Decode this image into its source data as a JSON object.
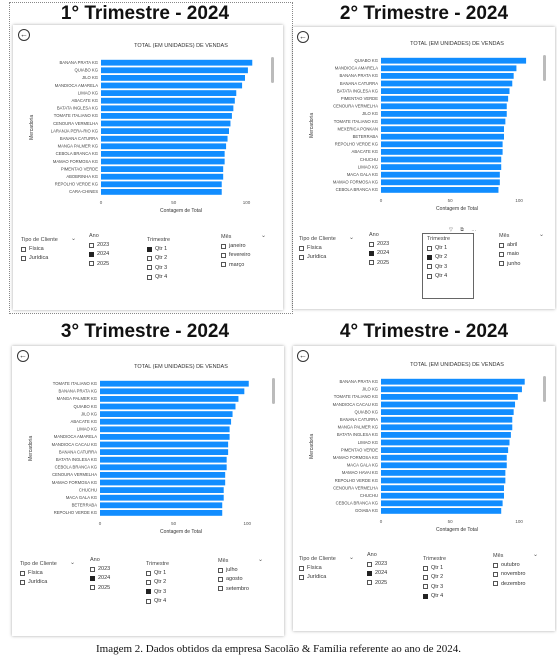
{
  "caption": "Imagem 2. Dados obtidos da empresa Sacolão & Família referente ao ano de 2024.",
  "colors": {
    "bar": "#118DFF",
    "axis_text": "#333333"
  },
  "icons": {
    "back": "back-arrow-icon",
    "chevron": "chevron-down-icon"
  },
  "panels": [
    {
      "heading": "1° Trimestre - 2024",
      "filters": {
        "tipo_title": "Tipo de Cliente",
        "tipo_options": [
          "Física",
          "Jurídica"
        ],
        "ano_title": "Ano",
        "ano_options": [
          "2023",
          "2024",
          "2025"
        ],
        "ano_selected": "2024",
        "trimestre_title": "Trimestre",
        "trimestre_options": [
          "Qtr 1",
          "Qtr 2",
          "Qtr 3",
          "Qtr 4"
        ],
        "trimestre_selected": "Qtr 1",
        "mes_title": "Mês",
        "mes_options": [
          "janeiro",
          "fevereiro",
          "março"
        ]
      }
    },
    {
      "heading": "2° Trimestre - 2024",
      "filters": {
        "tipo_title": "Tipo de Cliente",
        "tipo_options": [
          "Física",
          "Jurídica"
        ],
        "ano_title": "Ano",
        "ano_options": [
          "2023",
          "2024",
          "2025"
        ],
        "ano_selected": "2024",
        "trimestre_title": "Trimestre",
        "trimestre_options": [
          "Qtr 1",
          "Qtr 2",
          "Qtr 3",
          "Qtr 4"
        ],
        "trimestre_selected": "Qtr 2",
        "mes_title": "Mês",
        "mes_options": [
          "abril",
          "maio",
          "junho"
        ]
      }
    },
    {
      "heading": "3° Trimestre - 2024",
      "filters": {
        "tipo_title": "Tipo de Cliente",
        "tipo_options": [
          "Física",
          "Jurídica"
        ],
        "ano_title": "Ano",
        "ano_options": [
          "2023",
          "2024",
          "2025"
        ],
        "ano_selected": "2024",
        "trimestre_title": "Trimestre",
        "trimestre_options": [
          "Qtr 1",
          "Qtr 2",
          "Qtr 3",
          "Qtr 4"
        ],
        "trimestre_selected": "Qtr 3",
        "mes_title": "Mês",
        "mes_options": [
          "julho",
          "agosto",
          "setembro"
        ]
      }
    },
    {
      "heading": "4° Trimestre - 2024",
      "filters": {
        "tipo_title": "Tipo de Cliente",
        "tipo_options": [
          "Física",
          "Jurídica"
        ],
        "ano_title": "Ano",
        "ano_options": [
          "2023",
          "2024",
          "2025"
        ],
        "ano_selected": "2024",
        "trimestre_title": "Trimestre",
        "trimestre_options": [
          "Qtr 1",
          "Qtr 2",
          "Qtr 3",
          "Qtr 4"
        ],
        "trimestre_selected": "Qtr 4",
        "mes_title": "Mês",
        "mes_options": [
          "outubro",
          "novembro",
          "dezembro"
        ]
      }
    }
  ],
  "chart_data": [
    {
      "type": "bar",
      "orientation": "horizontal",
      "title": "TOTAL (EM UNIDADES) DE VENDAS",
      "xlabel": "Contagem de Total",
      "ylabel": "Mercadoria",
      "xlim": [
        0,
        110
      ],
      "xticks": [
        0,
        50,
        100
      ],
      "categories": [
        "BANANA PRATA KG",
        "QUIABO KG",
        "JILO KG",
        "MANDIOCA AMARELA",
        "LIMAO KG",
        "ABACATE KG",
        "BATATA INGLESA KG",
        "TOMATE ITALIANO KG",
        "CENOURA VERMELHA",
        "LARANJA PERA-RIO KG",
        "BANANA CATURRA",
        "MANGA PALMER KG",
        "CEBOLA BRANCA KG",
        "MAMAO FORMOSA KG",
        "PIMENTAO VERDE",
        "ABOBRINHA KG",
        "REPOLHO VERDE KG",
        "CARA-CHINES"
      ],
      "values": [
        104,
        101,
        99,
        97,
        93,
        92,
        91,
        90,
        89,
        88,
        87,
        86,
        85,
        85,
        84,
        84,
        83,
        83
      ]
    },
    {
      "type": "bar",
      "orientation": "horizontal",
      "title": "TOTAL (EM UNIDADES) DE VENDAS",
      "xlabel": "Contagem de Total",
      "ylabel": "Mercadoria",
      "xlim": [
        0,
        110
      ],
      "xticks": [
        0,
        50,
        100
      ],
      "categories": [
        "QUIABO KG",
        "MANDIOCA AMARELA",
        "BANANA PRATA KG",
        "BANANA CATURRA",
        "BATATA INGLESA KG",
        "PIMENTAO VERDE",
        "CENOURA VERMELHA",
        "JILO KG",
        "TOMATE ITALIANO KG",
        "MEXERICA PONKAN",
        "BETERRABA",
        "REPOLHO VERDE KG",
        "ABACATE KG",
        "CHUCHU",
        "LIMAO KG",
        "MACA GALA KG",
        "MAMAO FORMOSA KG",
        "CEBOLA BRANCA KG"
      ],
      "values": [
        105,
        98,
        96,
        95,
        93,
        92,
        91,
        91,
        90,
        89,
        89,
        88,
        88,
        87,
        87,
        86,
        86,
        85
      ]
    },
    {
      "type": "bar",
      "orientation": "horizontal",
      "title": "TOTAL (EM UNIDADES) DE VENDAS",
      "xlabel": "Contagem de Total",
      "ylabel": "Mercadoria",
      "xlim": [
        0,
        110
      ],
      "xticks": [
        0,
        50,
        100
      ],
      "categories": [
        "TOMATE ITALIANO KG",
        "BANANA PRATA KG",
        "MANGA PALMER KG",
        "QUIABO KG",
        "JILO KG",
        "ABACATE KG",
        "LIMAO KG",
        "MANDIOCA AMARELA",
        "MANDIOCA CACAU KG",
        "BANANA CATURRA",
        "BATATA INGLESA KG",
        "CEBOLA BRANCA KG",
        "CENOURA VERMELHA",
        "MAMAO FORMOSA KG",
        "CHUCHU",
        "MACA GALA KG",
        "BETERRABA",
        "REPOLHO VERDE KG"
      ],
      "values": [
        101,
        98,
        94,
        92,
        90,
        89,
        88,
        88,
        87,
        87,
        86,
        86,
        85,
        85,
        84,
        84,
        83,
        83
      ]
    },
    {
      "type": "bar",
      "orientation": "horizontal",
      "title": "TOTAL (EM UNIDADES) DE VENDAS",
      "xlabel": "Contagem de Total",
      "ylabel": "Mercadoria",
      "xlim": [
        0,
        110
      ],
      "xticks": [
        0,
        50,
        100
      ],
      "categories": [
        "BANANA PRATA KG",
        "JILO KG",
        "TOMATE ITALIANO KG",
        "MANDIOCA CACAU KG",
        "QUIABO KG",
        "BANANA CATURRA",
        "MANGA PALMER KG",
        "BATATA INGLESA KG",
        "LIMAO KG",
        "PIMENTAO VERDE",
        "MAMAO FORMOSA KG",
        "MACA GALA KG",
        "MAMAO HAVAI KG",
        "REPOLHO VERDE KG",
        "CENOURA VERMELHA",
        "CHUCHU",
        "CEBOLA BRANCA KG",
        "GOIABA KG"
      ],
      "values": [
        104,
        102,
        99,
        97,
        96,
        95,
        95,
        94,
        93,
        92,
        91,
        91,
        90,
        90,
        89,
        89,
        88,
        87
      ]
    }
  ]
}
